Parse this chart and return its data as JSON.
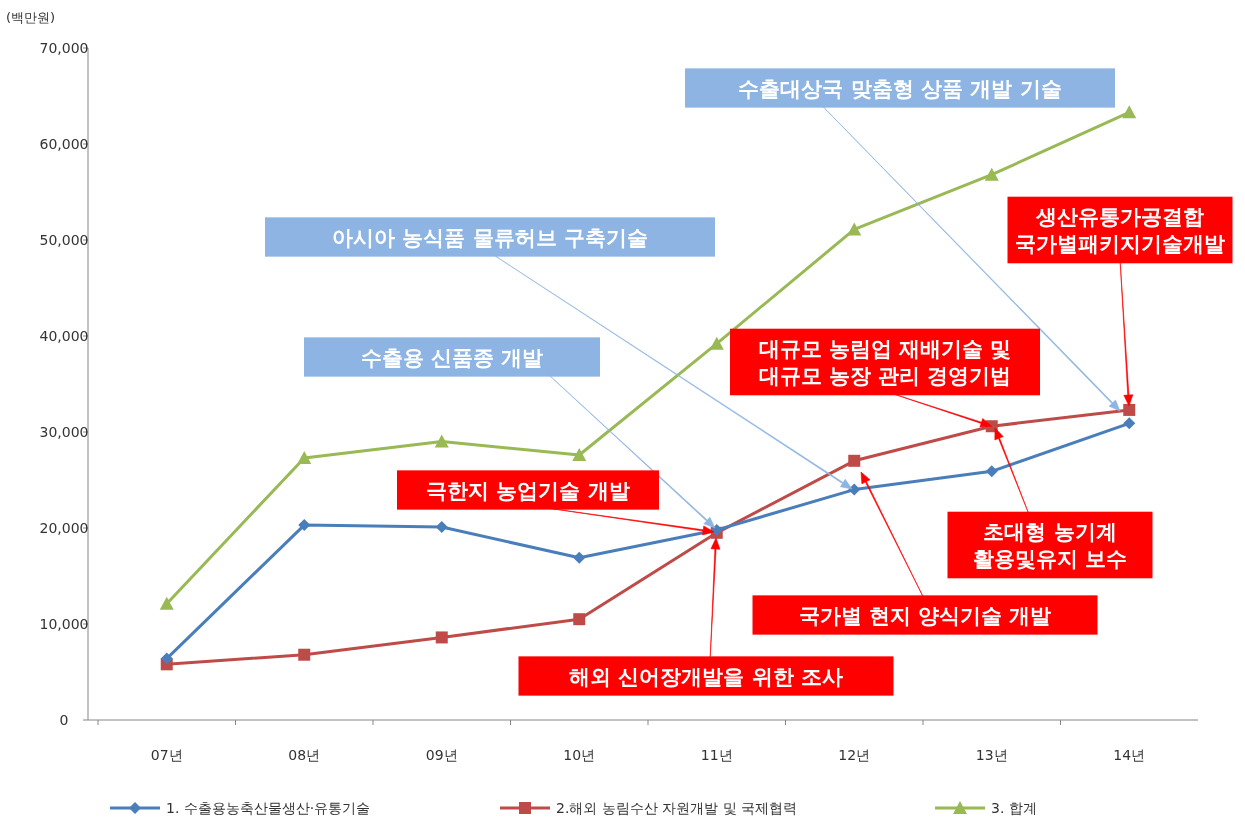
{
  "chart_data": {
    "type": "line",
    "ylabel": "(백만원)",
    "categories": [
      "07년",
      "08년",
      "09년",
      "10년",
      "11년",
      "12년",
      "13년",
      "14년"
    ],
    "ylim": [
      0,
      70000
    ],
    "yticks": [
      {
        "value": 0,
        "label": "0"
      },
      {
        "value": 10000,
        "label": "10,000"
      },
      {
        "value": 20000,
        "label": "20,000"
      },
      {
        "value": 30000,
        "label": "30,000"
      },
      {
        "value": 40000,
        "label": "40,000"
      },
      {
        "value": 50000,
        "label": "50,000"
      },
      {
        "value": 60000,
        "label": "60,000"
      },
      {
        "value": 70000,
        "label": "70,000"
      }
    ],
    "grid": false,
    "legend": "bottom",
    "series": [
      {
        "name": "1. 수출용농축산물생산·유통기술",
        "color": "#4a7ebb",
        "marker": "diamond",
        "values": [
          6400,
          20300,
          20100,
          16900,
          19800,
          24000,
          25900,
          30900
        ]
      },
      {
        "name": "2.해외 농림수산 자원개발 및 국제협력",
        "color": "#be4b48",
        "marker": "square",
        "values": [
          5800,
          6800,
          8600,
          10500,
          19500,
          27000,
          30600,
          32300
        ]
      },
      {
        "name": "3. 합계",
        "color": "#98b954",
        "marker": "triangle",
        "values": [
          12100,
          27300,
          29000,
          27600,
          39200,
          51100,
          56800,
          63300
        ]
      }
    ],
    "annotations": [
      "수출대상국 맞춤형 상품 개발 기술",
      "아시아 농식품 물류허브 구축기술",
      "수출용 신품종 개발",
      "생산유통가공결합 국가별패키지기술개발",
      {
        "text": "대규모 농림업 재배기술 및 대규모 농장 관리 경영기법",
        "x": "13년",
        "y": 30600
      },
      "극한지 농업기술 개발",
      "초대형 농기계 활용및유지 보수",
      "국가별 현지 양식기술 개발",
      "해외 신어장개발을 위한 조사"
    ]
  }
}
